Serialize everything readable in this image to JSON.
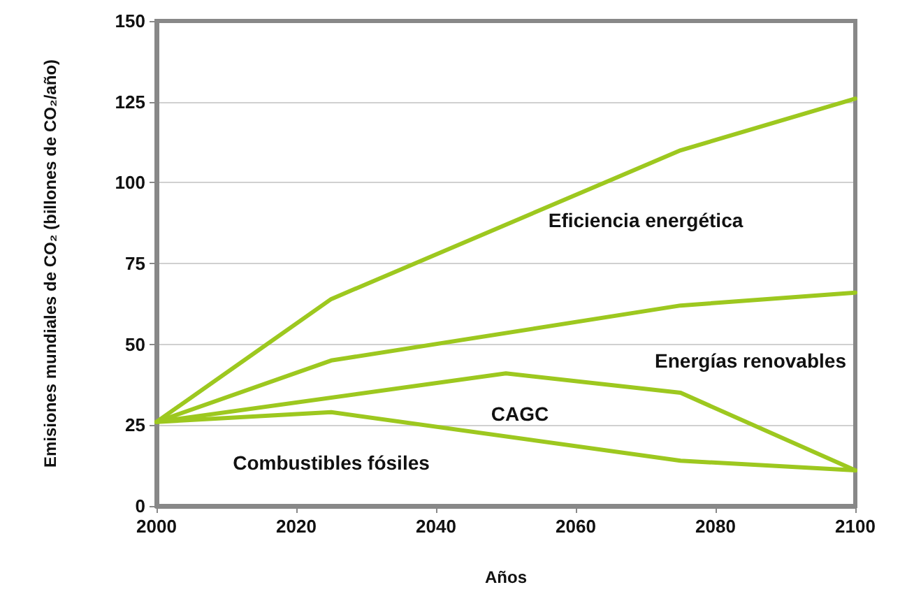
{
  "chart_data": {
    "type": "line",
    "xlabel": "Años",
    "ylabel": "Emisiones mundiales de CO₂ (billones de CO₂/año)",
    "xlim": [
      2000,
      2100
    ],
    "xticks": [
      2000,
      2020,
      2040,
      2060,
      2080,
      2100
    ],
    "ylim": [
      0,
      150
    ],
    "yticks": [
      0,
      25,
      50,
      75,
      100,
      125,
      150
    ],
    "grid": "y",
    "marker": "none",
    "line_style": "solid",
    "series": [
      {
        "color": "#9dc81f",
        "x": [
          2000,
          2025,
          2075,
          2100
        ],
        "values": [
          26,
          64,
          110,
          126
        ]
      },
      {
        "color": "#9dc81f",
        "x": [
          2000,
          2025,
          2075,
          2100
        ],
        "values": [
          26,
          45,
          62,
          66
        ]
      },
      {
        "color": "#9dc81f",
        "x": [
          2000,
          2050,
          2075,
          2100
        ],
        "values": [
          26,
          41,
          35,
          11
        ]
      },
      {
        "color": "#9dc81f",
        "x": [
          2000,
          2025,
          2075,
          2100
        ],
        "values": [
          26,
          29,
          14,
          11
        ]
      }
    ],
    "annotations": [
      "Eficiencia energética",
      "Energías renovables",
      "CAGC",
      "Combustibles fósiles"
    ]
  }
}
